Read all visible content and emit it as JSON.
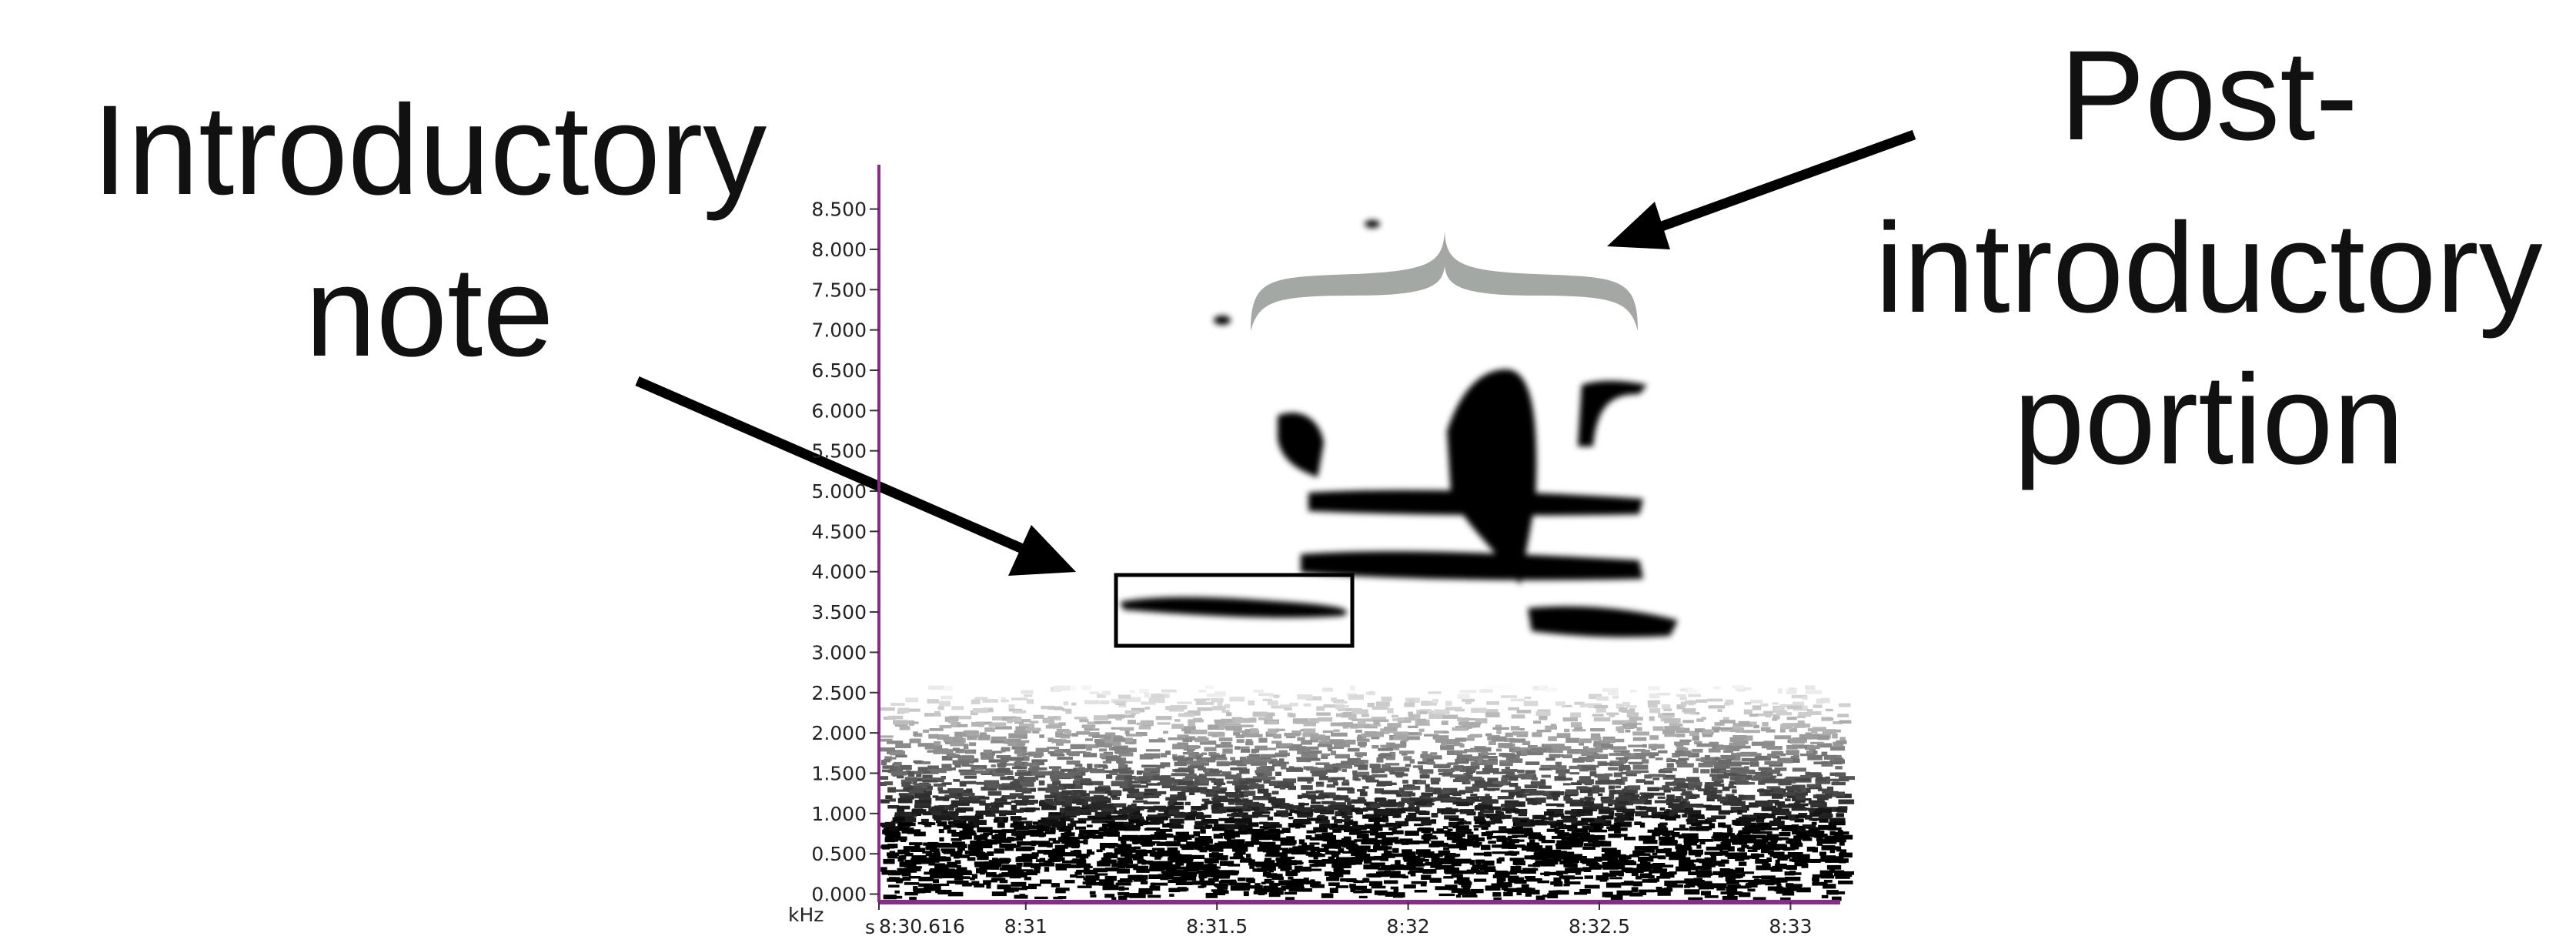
{
  "chart_data": {
    "type": "spectrogram",
    "annotations": [
      "Introductory",
      "note",
      "Post-",
      "introductory",
      "portion"
    ],
    "xlabel": "s",
    "ylabel": "kHz",
    "xlim": [
      510.616,
      513.13
    ],
    "xticks": [
      {
        "value": 510.616,
        "label": "8:30.616"
      },
      {
        "value": 511,
        "label": "8:31"
      },
      {
        "value": 511.5,
        "label": "8:31.5"
      },
      {
        "value": 512,
        "label": "8:32"
      },
      {
        "value": 512.5,
        "label": "8:32.5"
      },
      {
        "value": 513,
        "label": "8:33"
      }
    ],
    "ylim": [
      -0.1,
      9.05
    ],
    "yticks": [
      {
        "value": 0,
        "label": "0.000"
      },
      {
        "value": 0.5,
        "label": "0.500"
      },
      {
        "value": 1,
        "label": "1.000"
      },
      {
        "value": 1.5,
        "label": "1.500"
      },
      {
        "value": 2,
        "label": "2.000"
      },
      {
        "value": 2.5,
        "label": "2.500"
      },
      {
        "value": 3,
        "label": "3.000"
      },
      {
        "value": 3.5,
        "label": "3.500"
      },
      {
        "value": 4,
        "label": "4.000"
      },
      {
        "value": 4.5,
        "label": "4.500"
      },
      {
        "value": 5,
        "label": "5.000"
      },
      {
        "value": 5.5,
        "label": "5.500"
      },
      {
        "value": 6,
        "label": "6.000"
      },
      {
        "value": 6.5,
        "label": "6.500"
      },
      {
        "value": 7,
        "label": "7.000"
      },
      {
        "value": 7.5,
        "label": "7.500"
      },
      {
        "value": 8,
        "label": "8.000"
      },
      {
        "value": 8.5,
        "label": "8.500"
      }
    ]
  }
}
